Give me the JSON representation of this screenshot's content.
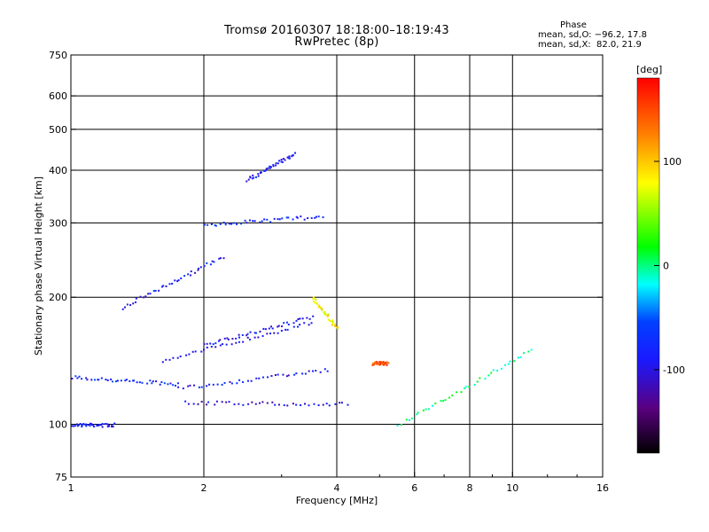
{
  "title": "Tromsø 20160307 18:18:00–18:19:43",
  "subtitle": "RwPretec (8p)",
  "phase_box": {
    "heading": "Phase",
    "line_o": "mean, sd,O: −96.2, 17.8",
    "line_x": "mean, sd,X:  82.0, 21.9"
  },
  "colorbar": {
    "unit_label": "[deg]",
    "ticks": [
      100,
      0,
      -100
    ],
    "range": [
      -180,
      180
    ]
  },
  "chart_data": {
    "type": "scatter",
    "title": "Tromsø 20160307 18:18:00–18:19:43",
    "subtitle": "RwPretec (8p)",
    "xlabel": "Frequency [MHz]",
    "ylabel": "Stationary phase Virtual Height [km]",
    "x_scale": "log",
    "y_scale": "log",
    "xlim": [
      1,
      16
    ],
    "ylim": [
      75,
      750
    ],
    "x_ticks": [
      1,
      2,
      4,
      6,
      8,
      10,
      16
    ],
    "y_ticks": [
      75,
      100,
      200,
      300,
      400,
      500,
      600,
      750
    ],
    "grid_x": [
      2,
      4,
      6,
      8,
      10
    ],
    "grid_y": [
      100,
      200,
      300,
      400,
      500,
      600
    ],
    "color_variable": "phase [deg]",
    "traces": [
      {
        "x_range": [
          1.0,
          1.25
        ],
        "y": 100,
        "phase": -100
      },
      {
        "x_range": [
          1.0,
          1.75
        ],
        "y_range": [
          130,
          125
        ],
        "phase": -90
      },
      {
        "x_range": [
          1.75,
          3.8
        ],
        "y_range": [
          122,
          135
        ],
        "phase": -100
      },
      {
        "x_range": [
          1.8,
          4.2
        ],
        "y_range": [
          113,
          112
        ],
        "phase": -110
      },
      {
        "x_range": [
          1.6,
          3.5
        ],
        "y_range": [
          142,
          175
        ],
        "phase": -100
      },
      {
        "x_range": [
          2.0,
          3.5
        ],
        "y_range": [
          155,
          180
        ],
        "phase": -100
      },
      {
        "x_range": [
          2.0,
          3.7
        ],
        "y_range": [
          298,
          312
        ],
        "phase": -90
      },
      {
        "x_range": [
          4.8,
          5.2
        ],
        "y": 140,
        "phase": 150
      },
      {
        "x_range": [
          3.5,
          4.0
        ],
        "y_range": [
          200,
          170
        ],
        "phase": 80
      },
      {
        "x_range": [
          2.5,
          3.2
        ],
        "y_range": [
          380,
          440
        ],
        "phase": -100
      },
      {
        "x_range": [
          1.3,
          2.2
        ],
        "y_range": [
          190,
          250
        ],
        "phase": -100
      },
      {
        "x_range": [
          5.5,
          11.0
        ],
        "y_range": [
          100,
          150
        ],
        "phase": 0
      }
    ]
  }
}
